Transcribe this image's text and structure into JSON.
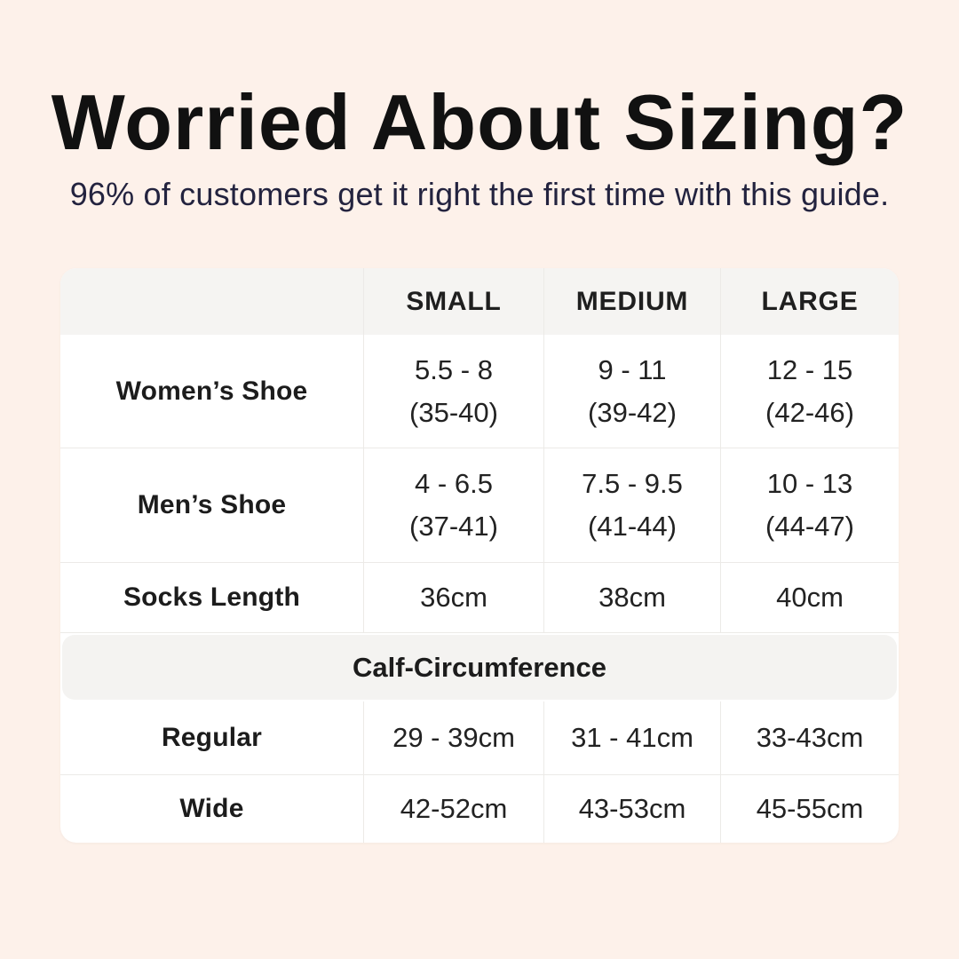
{
  "page": {
    "background_color": "#fdf1ea",
    "table_background_color": "#ffffff",
    "band_color": "#f5f4f2",
    "border_color": "#eceae7",
    "subtitle_color": "#23233f"
  },
  "header": {
    "title": "Worried About Sizing?",
    "subtitle": "96% of customers get it right the first time with this guide."
  },
  "table": {
    "columns": {
      "c0": "",
      "c1": "SMALL",
      "c2": "MEDIUM",
      "c3": "LARGE"
    },
    "rows": {
      "womens_shoe": {
        "label": "Women’s Shoe",
        "small": {
          "line1": "5.5 - 8",
          "line2": "(35-40)"
        },
        "medium": {
          "line1": "9 - 11",
          "line2": "(39-42)"
        },
        "large": {
          "line1": "12 - 15",
          "line2": "(42-46)"
        }
      },
      "mens_shoe": {
        "label": "Men’s Shoe",
        "small": {
          "line1": "4 - 6.5",
          "line2": "(37-41)"
        },
        "medium": {
          "line1": "7.5 - 9.5",
          "line2": "(41-44)"
        },
        "large": {
          "line1": "10 - 13",
          "line2": "(44-47)"
        }
      },
      "socks_length": {
        "label": "Socks Length",
        "small": "36cm",
        "medium": "38cm",
        "large": "40cm"
      },
      "regular": {
        "label": "Regular",
        "small": "29 - 39cm",
        "medium": "31 - 41cm",
        "large": "33-43cm"
      },
      "wide": {
        "label": "Wide",
        "small": "42-52cm",
        "medium": "43-53cm",
        "large": "45-55cm"
      }
    },
    "section_label": "Calf-Circumference"
  },
  "chart_data": {
    "type": "table",
    "title": "Worried About Sizing?",
    "subtitle": "96% of customers get it right the first time with this guide.",
    "columns": [
      "",
      "SMALL",
      "MEDIUM",
      "LARGE"
    ],
    "rows": [
      [
        "Women’s Shoe",
        "5.5 - 8 (35-40)",
        "9 - 11 (39-42)",
        "12 - 15 (42-46)"
      ],
      [
        "Men’s Shoe",
        "4 - 6.5 (37-41)",
        "7.5 - 9.5 (41-44)",
        "10 - 13 (44-47)"
      ],
      [
        "Socks Length",
        "36cm",
        "38cm",
        "40cm"
      ],
      [
        "Calf-Circumference",
        "",
        "",
        ""
      ],
      [
        "Regular",
        "29 - 39cm",
        "31 - 41cm",
        "33-43cm"
      ],
      [
        "Wide",
        "42-52cm",
        "43-53cm",
        "45-55cm"
      ]
    ],
    "layout_hints": {
      "section_row_index": 3,
      "section_spans_all_columns": true,
      "header_row_shaded": true
    }
  }
}
